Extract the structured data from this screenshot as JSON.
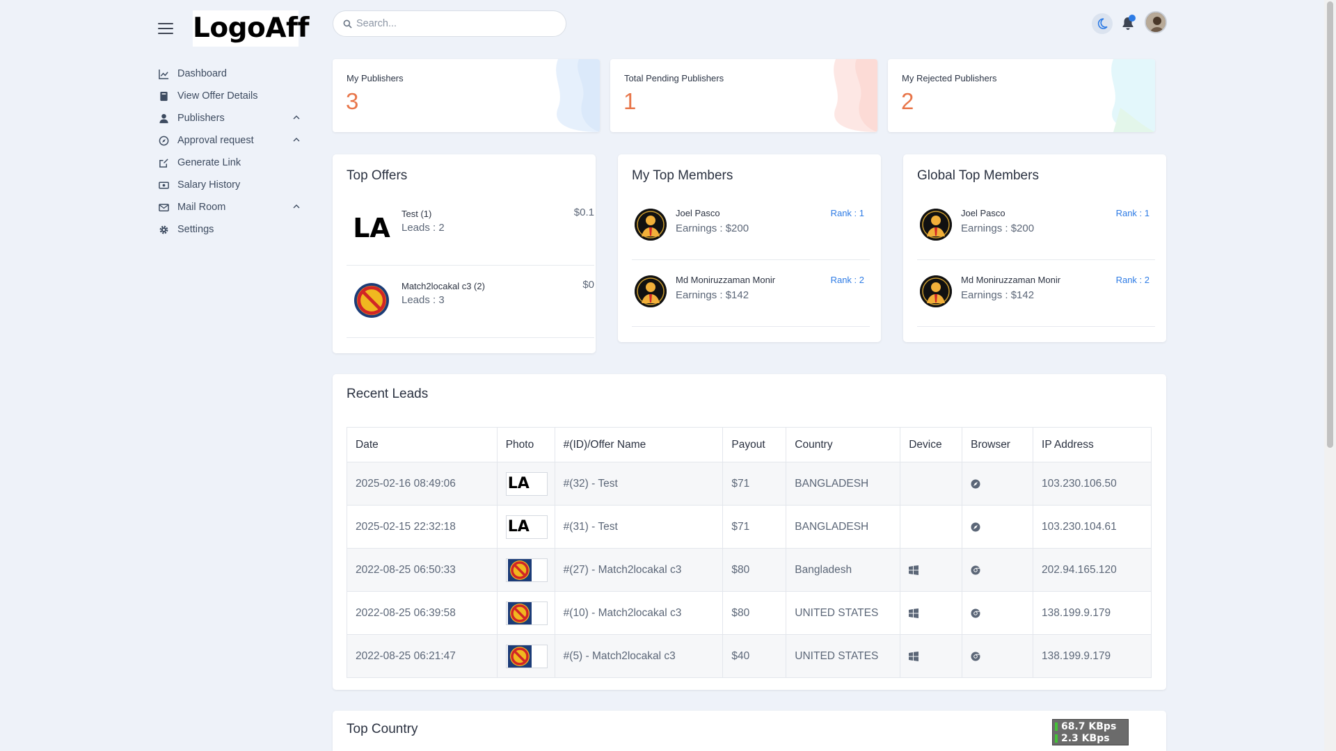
{
  "brand": {
    "logo_text": "LogoAff"
  },
  "search": {
    "placeholder": "Search..."
  },
  "sidebar": {
    "items": [
      {
        "label": "Dashboard",
        "icon": "chart-line-icon"
      },
      {
        "label": "View Offer Details",
        "icon": "book-icon"
      },
      {
        "label": "Publishers",
        "icon": "user-tie-icon",
        "expandable": true
      },
      {
        "label": "Approval request",
        "icon": "compass-icon",
        "expandable": true
      },
      {
        "label": "Generate Link",
        "icon": "edit-icon"
      },
      {
        "label": "Salary History",
        "icon": "money-bill-icon"
      },
      {
        "label": "Mail Room",
        "icon": "envelope-icon",
        "expandable": true
      },
      {
        "label": "Settings",
        "icon": "gear-icon"
      }
    ]
  },
  "stats": [
    {
      "label": "My Publishers",
      "value": "3"
    },
    {
      "label": "Total Pending Publishers",
      "value": "1"
    },
    {
      "label": "My Rejected Publishers",
      "value": "2"
    }
  ],
  "top_offers": {
    "title": "Top Offers",
    "items": [
      {
        "name": "Test (1)",
        "leads": "Leads : 2",
        "price": "$0.1",
        "thumb": "LA"
      },
      {
        "name": "Match2locakal c3 (2)",
        "leads": "Leads : 3",
        "price": "$0",
        "thumb": "badge"
      }
    ]
  },
  "my_top_members": {
    "title": "My Top Members",
    "items": [
      {
        "name": "Joel Pasco",
        "earnings": "Earnings : $200",
        "rank": "Rank : 1"
      },
      {
        "name": "Md Moniruzzaman Monir",
        "earnings": "Earnings : $142",
        "rank": "Rank : 2"
      }
    ]
  },
  "global_top_members": {
    "title": "Global Top Members",
    "items": [
      {
        "name": "Joel Pasco",
        "earnings": "Earnings : $200",
        "rank": "Rank : 1"
      },
      {
        "name": "Md Moniruzzaman Monir",
        "earnings": "Earnings : $142",
        "rank": "Rank : 2"
      }
    ]
  },
  "recent_leads": {
    "title": "Recent Leads",
    "columns": [
      "Date",
      "Photo",
      "#(ID)/Offer Name",
      "Payout",
      "Country",
      "Device",
      "Browser",
      "IP Address"
    ],
    "rows": [
      {
        "date": "2025-02-16 08:49:06",
        "photo": "LA",
        "offer": "#(32) - Test",
        "payout": "$71",
        "country": "BANGLADESH",
        "device": "",
        "browser": "safari-icon",
        "ip": "103.230.106.50"
      },
      {
        "date": "2025-02-15 22:32:18",
        "photo": "LA",
        "offer": "#(31) - Test",
        "payout": "$71",
        "country": "BANGLADESH",
        "device": "",
        "browser": "safari-icon",
        "ip": "103.230.104.61"
      },
      {
        "date": "2022-08-25 06:50:33",
        "photo": "badge",
        "offer": "#(27) - Match2locakal c3",
        "payout": "$80",
        "country": "Bangladesh",
        "device": "windows-icon",
        "browser": "chrome-icon",
        "ip": "202.94.165.120"
      },
      {
        "date": "2022-08-25 06:39:58",
        "photo": "badge",
        "offer": "#(10) - Match2locakal c3",
        "payout": "$80",
        "country": "UNITED STATES",
        "device": "windows-icon",
        "browser": "chrome-icon",
        "ip": "138.199.9.179"
      },
      {
        "date": "2022-08-25 06:21:47",
        "photo": "badge",
        "offer": "#(5) - Match2locakal c3",
        "payout": "$40",
        "country": "UNITED STATES",
        "device": "windows-icon",
        "browser": "chrome-icon",
        "ip": "138.199.9.179"
      }
    ]
  },
  "top_country": {
    "title": "Top Country"
  },
  "net_meter": {
    "down": "68.7 KBps",
    "up": "2.3 KBps"
  },
  "colors": {
    "accent": "#e8764a",
    "rank": "#2d7be5",
    "background": "#eef2f9"
  }
}
